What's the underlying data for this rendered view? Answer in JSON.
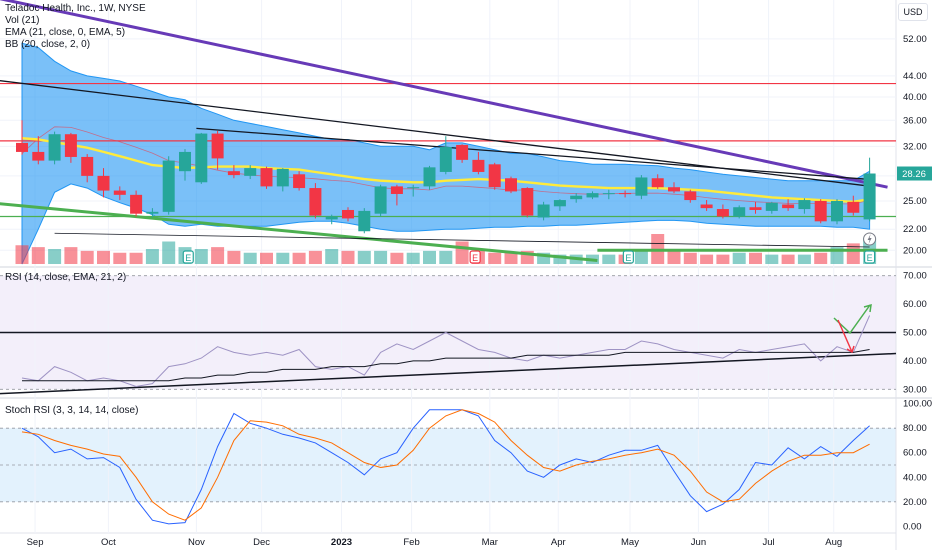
{
  "header": {
    "symbol_line": "Teladoc Health, Inc., 1W, NYSE",
    "indicators": [
      "Vol (21)",
      "EMA (21, close, 0, EMA, 5)",
      "BB (20, close, 2, 0)"
    ],
    "currency": "USD",
    "last_price": "28.26"
  },
  "panes": {
    "rsi_label": "RSI (14, close, EMA, 21, 2)",
    "stoch_label": "Stoch RSI (3, 3, 14, 14, close)"
  },
  "colors": {
    "up": "#26a69a",
    "down": "#f23645",
    "bb_fill": "#2196f3",
    "ema": "#ffeb3b",
    "trend_purple": "#673ab7",
    "trend_green": "#4caf50",
    "hline_red": "#f23645",
    "rsi_bg": "#f3effa",
    "stoch_bg": "#e3f2fd",
    "k_line": "#2962ff",
    "d_line": "#ff6d00"
  },
  "chart_data": [
    {
      "type": "candlestick",
      "title": "Teladoc Health, Inc., 1W, NYSE",
      "y_axis_ticks": [
        20.0,
        22.0,
        25.0,
        28.0,
        32.0,
        36.0,
        40.0,
        44.0,
        52.0
      ],
      "y_scale": "log",
      "ylim": [
        18.8,
        62
      ],
      "x_axis_ticks": [
        "Sep",
        "Oct",
        "Nov",
        "Dec",
        "2023",
        "Feb",
        "Mar",
        "Apr",
        "May",
        "Jun",
        "Jul",
        "Aug"
      ],
      "candles": [
        {
          "o": 32.5,
          "h": 36.0,
          "l": 30.8,
          "c": 31.2
        },
        {
          "o": 31.2,
          "h": 33.5,
          "l": 29.5,
          "c": 30.0
        },
        {
          "o": 30.0,
          "h": 34.2,
          "l": 29.5,
          "c": 33.8
        },
        {
          "o": 33.8,
          "h": 34.0,
          "l": 29.7,
          "c": 30.5
        },
        {
          "o": 30.5,
          "h": 30.9,
          "l": 27.2,
          "c": 28.0
        },
        {
          "o": 28.0,
          "h": 29.0,
          "l": 25.4,
          "c": 26.2
        },
        {
          "o": 26.2,
          "h": 26.7,
          "l": 25.1,
          "c": 25.7
        },
        {
          "o": 25.7,
          "h": 26.2,
          "l": 23.3,
          "c": 23.6
        },
        {
          "o": 23.6,
          "h": 24.2,
          "l": 23.2,
          "c": 23.8
        },
        {
          "o": 23.8,
          "h": 30.6,
          "l": 23.5,
          "c": 30.0
        },
        {
          "o": 28.6,
          "h": 31.6,
          "l": 27.4,
          "c": 31.2
        },
        {
          "o": 27.2,
          "h": 34.0,
          "l": 27.0,
          "c": 33.9
        },
        {
          "o": 33.9,
          "h": 34.3,
          "l": 28.8,
          "c": 30.3
        },
        {
          "o": 28.6,
          "h": 29.4,
          "l": 27.7,
          "c": 28.1
        },
        {
          "o": 28.0,
          "h": 29.4,
          "l": 27.6,
          "c": 29.0
        },
        {
          "o": 29.0,
          "h": 29.2,
          "l": 26.4,
          "c": 26.7
        },
        {
          "o": 26.7,
          "h": 29.0,
          "l": 26.1,
          "c": 28.9
        },
        {
          "o": 28.2,
          "h": 28.6,
          "l": 26.2,
          "c": 26.5
        },
        {
          "o": 26.5,
          "h": 27.1,
          "l": 23.1,
          "c": 23.4
        },
        {
          "o": 23.0,
          "h": 23.5,
          "l": 22.5,
          "c": 23.3
        },
        {
          "o": 24.0,
          "h": 24.3,
          "l": 22.8,
          "c": 23.1
        },
        {
          "o": 21.8,
          "h": 24.2,
          "l": 21.6,
          "c": 23.9
        },
        {
          "o": 23.6,
          "h": 26.9,
          "l": 23.3,
          "c": 26.7
        },
        {
          "o": 26.7,
          "h": 26.9,
          "l": 24.5,
          "c": 25.8
        },
        {
          "o": 26.5,
          "h": 26.9,
          "l": 25.5,
          "c": 26.6
        },
        {
          "o": 26.7,
          "h": 29.3,
          "l": 26.3,
          "c": 29.1
        },
        {
          "o": 28.5,
          "h": 33.5,
          "l": 28.2,
          "c": 31.9
        },
        {
          "o": 32.2,
          "h": 32.3,
          "l": 29.7,
          "c": 30.1
        },
        {
          "o": 30.1,
          "h": 31.2,
          "l": 28.2,
          "c": 28.5
        },
        {
          "o": 29.5,
          "h": 29.7,
          "l": 26.3,
          "c": 26.6
        },
        {
          "o": 27.7,
          "h": 27.9,
          "l": 25.9,
          "c": 26.1
        },
        {
          "o": 26.5,
          "h": 26.6,
          "l": 23.2,
          "c": 23.4
        },
        {
          "o": 23.2,
          "h": 24.9,
          "l": 22.9,
          "c": 24.6
        },
        {
          "o": 24.4,
          "h": 25.2,
          "l": 23.9,
          "c": 25.1
        },
        {
          "o": 25.2,
          "h": 25.9,
          "l": 24.8,
          "c": 25.6
        },
        {
          "o": 25.4,
          "h": 26.1,
          "l": 25.2,
          "c": 25.9
        },
        {
          "o": 25.8,
          "h": 26.3,
          "l": 25.2,
          "c": 25.9
        },
        {
          "o": 25.9,
          "h": 26.2,
          "l": 25.4,
          "c": 25.8
        },
        {
          "o": 25.6,
          "h": 28.1,
          "l": 25.2,
          "c": 27.8
        },
        {
          "o": 27.7,
          "h": 28.2,
          "l": 26.4,
          "c": 26.6
        },
        {
          "o": 26.6,
          "h": 27.2,
          "l": 25.9,
          "c": 26.1
        },
        {
          "o": 26.1,
          "h": 26.3,
          "l": 24.8,
          "c": 25.1
        },
        {
          "o": 24.6,
          "h": 25.1,
          "l": 23.9,
          "c": 24.2
        },
        {
          "o": 24.1,
          "h": 24.6,
          "l": 23.1,
          "c": 23.3
        },
        {
          "o": 23.3,
          "h": 24.5,
          "l": 23.1,
          "c": 24.3
        },
        {
          "o": 24.3,
          "h": 24.9,
          "l": 23.6,
          "c": 24.0
        },
        {
          "o": 23.9,
          "h": 24.9,
          "l": 23.6,
          "c": 24.8
        },
        {
          "o": 24.6,
          "h": 25.2,
          "l": 23.9,
          "c": 24.2
        },
        {
          "o": 24.1,
          "h": 25.3,
          "l": 23.6,
          "c": 25.1
        },
        {
          "o": 25.0,
          "h": 25.2,
          "l": 22.6,
          "c": 22.8
        },
        {
          "o": 22.8,
          "h": 25.2,
          "l": 22.5,
          "c": 25.0
        },
        {
          "o": 24.9,
          "h": 25.6,
          "l": 23.4,
          "c": 23.7
        },
        {
          "o": 23.0,
          "h": 30.4,
          "l": 22.8,
          "c": 28.3
        }
      ],
      "volume": [
        10,
        9,
        8,
        9,
        7,
        7,
        6,
        6,
        8,
        12,
        9,
        8,
        9,
        7,
        6,
        6,
        6,
        6,
        7,
        8,
        7,
        7,
        7,
        6,
        6,
        7,
        7,
        12,
        7,
        6,
        6,
        7,
        6,
        5,
        5,
        5,
        5,
        5,
        7,
        16,
        8,
        6,
        5,
        5,
        6,
        6,
        5,
        5,
        5,
        6,
        9,
        11,
        14
      ],
      "ema21": [
        33.2,
        33.0,
        32.6,
        32.2,
        31.8,
        31.2,
        30.6,
        30.0,
        29.4,
        29.2,
        29.0,
        29.1,
        29.2,
        29.2,
        29.2,
        29.0,
        28.9,
        28.8,
        28.5,
        28.2,
        27.9,
        27.6,
        27.4,
        27.3,
        27.2,
        27.2,
        27.4,
        27.5,
        27.6,
        27.5,
        27.4,
        27.2,
        27.0,
        26.8,
        26.7,
        26.6,
        26.5,
        26.5,
        26.5,
        26.5,
        26.4,
        26.3,
        26.2,
        26.0,
        25.8,
        25.6,
        25.4,
        25.3,
        25.2,
        25.1,
        25.0,
        24.9,
        25.2
      ],
      "bb_upper": [
        51,
        50,
        47,
        45,
        44,
        43.5,
        43,
        42,
        41,
        40,
        39.5,
        38,
        37,
        36,
        35.5,
        35,
        34.5,
        34,
        33.5,
        33,
        33,
        32.5,
        32,
        32,
        32,
        31.5,
        32.5,
        32.5,
        32,
        31.5,
        31,
        31,
        30.5,
        30,
        29.8,
        29.5,
        29.5,
        29.5,
        29.4,
        29.3,
        29,
        28.8,
        28.5,
        28.2,
        28,
        27.8,
        27.6,
        27.4,
        27.4,
        27.4,
        27.4,
        27.4,
        28.6
      ],
      "bb_lower": [
        18.8,
        22,
        26,
        27,
        26.5,
        25.5,
        24.8,
        24.2,
        23.5,
        22.5,
        22.3,
        22.5,
        22.3,
        22.3,
        22.3,
        22.3,
        22.5,
        22.7,
        22.8,
        22.8,
        22.6,
        22.3,
        22.0,
        21.8,
        21.8,
        21.9,
        22.0,
        22.0,
        22.1,
        22.2,
        22.2,
        22.3,
        22.3,
        22.4,
        22.4,
        22.5,
        22.6,
        22.7,
        22.8,
        22.9,
        22.9,
        22.8,
        22.6,
        22.5,
        22.4,
        22.3,
        22.3,
        22.3,
        22.3,
        22.3,
        22.2,
        22.2,
        22.0
      ],
      "horizontal_lines": [
        42.5,
        32.8,
        23.3
      ]
    },
    {
      "type": "line",
      "title": "RSI (14, close, EMA, 21, 2)",
      "y_axis_ticks": [
        30.0,
        40.0,
        50.0,
        60.0,
        70.0
      ],
      "ylim": [
        28,
        72
      ],
      "reference_lines": [
        70,
        30
      ],
      "rsi": [
        34,
        33,
        38,
        36,
        33,
        34,
        33,
        31,
        32,
        38,
        39,
        41,
        45,
        43,
        42,
        43,
        42,
        44,
        38,
        37,
        38,
        35,
        43,
        46,
        44,
        47,
        50,
        47,
        44,
        43,
        41,
        40,
        42,
        41,
        42,
        43,
        44,
        44,
        47,
        46,
        44,
        43,
        42,
        41,
        44,
        43,
        44,
        45,
        46,
        40,
        45,
        43,
        56
      ],
      "rsi_ma": [
        33,
        33,
        33,
        33,
        33,
        33,
        33,
        33,
        33,
        33,
        34,
        34,
        35,
        35,
        36,
        36,
        37,
        37,
        37,
        38,
        38,
        38,
        39,
        39,
        40,
        40,
        41,
        41,
        41,
        41,
        41,
        42,
        42,
        42,
        42,
        42,
        42,
        43,
        43,
        43,
        43,
        43,
        43,
        43,
        43,
        43,
        43,
        43,
        43,
        43,
        43,
        43,
        44
      ]
    },
    {
      "type": "line",
      "title": "Stoch RSI (3, 3, 14, 14, close)",
      "y_axis_ticks": [
        0.0,
        20.0,
        40.0,
        60.0,
        80.0,
        100.0
      ],
      "ylim": [
        -3,
        103
      ],
      "reference_lines": [
        80,
        50,
        20
      ],
      "k": [
        80,
        73,
        60,
        63,
        55,
        56,
        48,
        22,
        5,
        2,
        3,
        30,
        65,
        92,
        84,
        80,
        75,
        72,
        68,
        60,
        52,
        42,
        55,
        60,
        80,
        95,
        95,
        95,
        90,
        70,
        60,
        45,
        40,
        50,
        55,
        52,
        58,
        62,
        62,
        66,
        45,
        25,
        12,
        18,
        30,
        52,
        50,
        64,
        55,
        65,
        57,
        70,
        82
      ],
      "d": [
        77,
        75,
        70,
        66,
        63,
        59,
        57,
        40,
        20,
        10,
        5,
        15,
        40,
        70,
        86,
        85,
        82,
        75,
        72,
        68,
        60,
        52,
        48,
        50,
        62,
        80,
        90,
        95,
        92,
        85,
        70,
        58,
        48,
        45,
        50,
        53,
        55,
        58,
        60,
        63,
        58,
        45,
        28,
        20,
        22,
        35,
        45,
        53,
        58,
        58,
        60,
        60,
        67
      ]
    }
  ]
}
